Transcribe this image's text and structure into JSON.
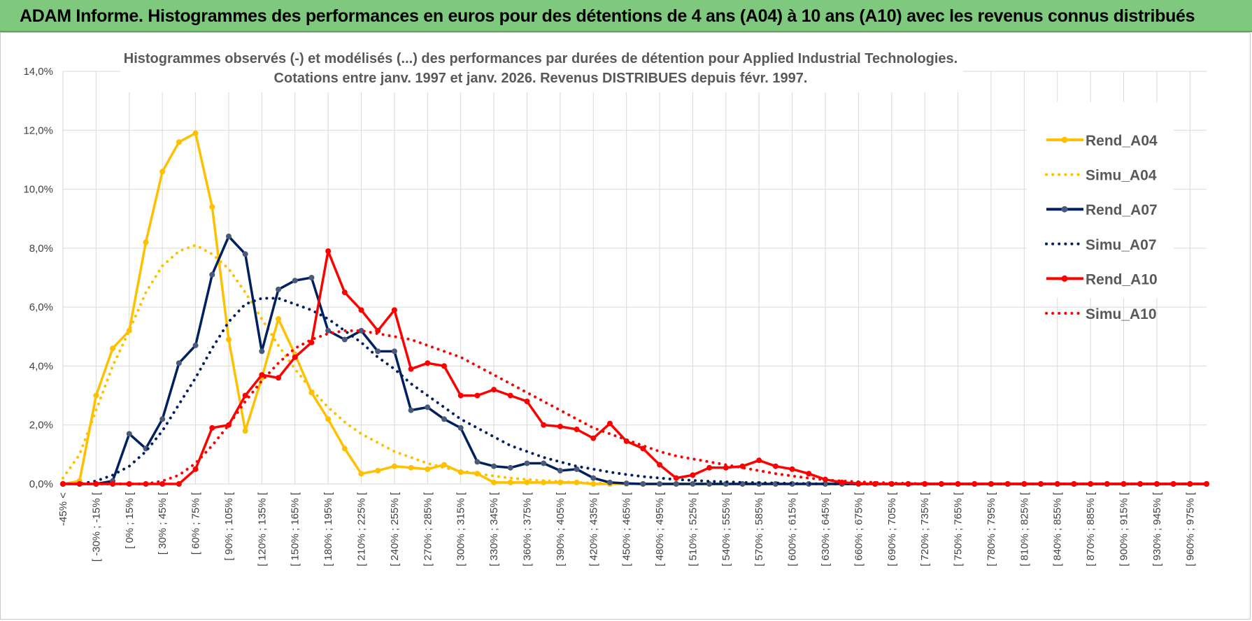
{
  "banner": {
    "title": "ADAM Informe. Histogrammes des performances en euros pour des détentions de 4 ans (A04) à 10 ans (A10) avec les revenus connus distribués"
  },
  "colors": {
    "a04": "#ffc000",
    "a07": "#002060",
    "a10": "#ff0000",
    "grid": "#d9d9d9",
    "banner": "#7fc97f"
  },
  "chart_data": {
    "type": "line",
    "title_line1": "Histogrammes observés (-) et modélisés (...) des performances par durées de détention pour Applied Industrial Technologies.",
    "title_line2": "Cotations entre janv. 1997 et janv. 2026. Revenus DISTRIBUES depuis févr. 1997.",
    "ylim": [
      0,
      14
    ],
    "y_ticks": [
      "0,0%",
      "2,0%",
      "4,0%",
      "6,0%",
      "8,0%",
      "10,0%",
      "12,0%",
      "14,0%"
    ],
    "x_labels": [
      "-45% <",
      "[ -30% ; -15% [",
      "[ 0% ; 15% [",
      "[ 30% ; 45% [",
      "[ 60% ; 75% [",
      "[ 90% ; 105% [",
      "[ 120% ; 135% [",
      "[ 150% ; 165% [",
      "[ 180% ; 195% [",
      "[ 210% ; 225% [",
      "[ 240% ; 255% [",
      "[ 270% ; 285% [",
      "[ 300% ; 315% [",
      "[ 330% ; 345% [",
      "[ 360% ; 375% [",
      "[ 390% ; 405% [",
      "[ 420% ; 435% [",
      "[ 450% ; 465% [",
      "[ 480% ; 495% [",
      "[ 510% ; 525% [",
      "[ 540% ; 555% [",
      "[ 570% ; 585% [",
      "[ 600% ; 615% [",
      "[ 630% ; 645% [",
      "[ 660% ; 675% [",
      "[ 690% ; 705% [",
      "[ 720% ; 735% [",
      "[ 750% ; 765% [",
      "[ 780% ; 795% [",
      "[ 810% ; 825% [",
      "[ 840% ; 855% [",
      "[ 870% ; 885% [",
      "[ 900% ; 915% [",
      "[ 930% ; 945% [",
      "[ 960% ; 975% ["
    ],
    "series": [
      {
        "name": "Rend_A04",
        "style": "solid",
        "color_key": "a04",
        "values": [
          0,
          0.1,
          3.0,
          4.6,
          5.2,
          8.2,
          10.6,
          11.6,
          11.9,
          9.4,
          4.9,
          1.8,
          3.6,
          5.6,
          4.4,
          3.1,
          2.2,
          1.2,
          0.35,
          0.45,
          0.6,
          0.55,
          0.5,
          0.65,
          0.4,
          0.35,
          0.05,
          0.05,
          0.05,
          0.05,
          0.05,
          0.05,
          0,
          0,
          0,
          0,
          0,
          0,
          0,
          0,
          0,
          0,
          0,
          0,
          0,
          0,
          0,
          0,
          0,
          0,
          0,
          0,
          0,
          0,
          0,
          0,
          0,
          0,
          0,
          0,
          0,
          0,
          0,
          0,
          0,
          0,
          0,
          0,
          0,
          0
        ]
      },
      {
        "name": "Simu_A04",
        "style": "dotted",
        "color_key": "a04",
        "values": [
          0.2,
          1.0,
          2.5,
          4.0,
          5.2,
          6.5,
          7.4,
          7.9,
          8.1,
          7.8,
          7.3,
          6.5,
          5.6,
          4.7,
          3.9,
          3.2,
          2.6,
          2.1,
          1.7,
          1.4,
          1.1,
          0.9,
          0.7,
          0.55,
          0.45,
          0.35,
          0.27,
          0.2,
          0.15,
          0.11,
          0.08,
          0.05,
          0.03,
          0.02,
          0.01,
          0,
          0,
          0,
          0,
          0,
          0,
          0,
          0,
          0,
          0,
          0,
          0,
          0,
          0,
          0,
          0,
          0,
          0,
          0,
          0,
          0,
          0,
          0,
          0,
          0,
          0,
          0,
          0,
          0,
          0,
          0,
          0,
          0,
          0,
          0
        ]
      },
      {
        "name": "Rend_A07",
        "style": "solid",
        "color_key": "a07",
        "values": [
          0,
          0,
          0,
          0.1,
          1.7,
          1.2,
          2.2,
          4.1,
          4.7,
          7.1,
          8.4,
          7.8,
          4.5,
          6.6,
          6.9,
          7.0,
          5.2,
          4.9,
          5.2,
          4.5,
          4.5,
          2.5,
          2.6,
          2.2,
          1.9,
          0.75,
          0.6,
          0.55,
          0.7,
          0.7,
          0.45,
          0.5,
          0.2,
          0.05,
          0.02,
          0,
          0,
          0,
          0,
          0,
          0,
          0,
          0,
          0,
          0,
          0,
          0,
          0,
          0,
          0,
          0,
          0,
          0,
          0,
          0,
          0,
          0,
          0,
          0,
          0,
          0,
          0,
          0,
          0,
          0,
          0,
          0,
          0,
          0,
          0
        ]
      },
      {
        "name": "Simu_A07",
        "style": "dotted",
        "color_key": "a07",
        "values": [
          0,
          0,
          0.1,
          0.3,
          0.6,
          1.1,
          1.8,
          2.7,
          3.6,
          4.6,
          5.5,
          6.1,
          6.3,
          6.3,
          6.1,
          5.9,
          5.6,
          5.2,
          4.8,
          4.3,
          3.9,
          3.4,
          3.0,
          2.6,
          2.2,
          1.9,
          1.6,
          1.3,
          1.1,
          0.9,
          0.75,
          0.6,
          0.5,
          0.4,
          0.32,
          0.25,
          0.2,
          0.15,
          0.12,
          0.09,
          0.07,
          0.05,
          0.04,
          0.03,
          0.02,
          0.01,
          0,
          0,
          0,
          0,
          0,
          0,
          0,
          0,
          0,
          0,
          0,
          0,
          0,
          0,
          0,
          0,
          0,
          0,
          0,
          0,
          0,
          0,
          0,
          0
        ]
      },
      {
        "name": "Rend_A10",
        "style": "solid",
        "color_key": "a10",
        "values": [
          0,
          0,
          0,
          0,
          0,
          0,
          0,
          0,
          0.5,
          1.9,
          2.0,
          3.0,
          3.7,
          3.6,
          4.3,
          4.8,
          7.9,
          6.5,
          5.9,
          5.2,
          5.9,
          3.9,
          4.1,
          4.0,
          3.0,
          3.0,
          3.2,
          3.0,
          2.8,
          2.0,
          1.95,
          1.85,
          1.55,
          2.05,
          1.45,
          1.2,
          0.65,
          0.2,
          0.3,
          0.55,
          0.55,
          0.6,
          0.8,
          0.6,
          0.5,
          0.35,
          0.15,
          0.05,
          0.02,
          0,
          0,
          0,
          0,
          0,
          0,
          0,
          0,
          0,
          0,
          0,
          0,
          0,
          0,
          0,
          0,
          0,
          0,
          0,
          0,
          0
        ]
      },
      {
        "name": "Simu_A10",
        "style": "dotted",
        "color_key": "a10",
        "values": [
          0,
          0,
          0,
          0,
          0,
          0,
          0.1,
          0.3,
          0.7,
          1.3,
          2.0,
          2.8,
          3.5,
          4.1,
          4.6,
          4.9,
          5.1,
          5.2,
          5.2,
          5.1,
          5.0,
          4.9,
          4.7,
          4.5,
          4.3,
          4.0,
          3.7,
          3.4,
          3.1,
          2.8,
          2.5,
          2.2,
          1.9,
          1.7,
          1.5,
          1.3,
          1.1,
          0.95,
          0.85,
          0.75,
          0.65,
          0.55,
          0.45,
          0.35,
          0.27,
          0.2,
          0.14,
          0.1,
          0.07,
          0.05,
          0.03,
          0.02,
          0.01,
          0,
          0,
          0,
          0,
          0,
          0,
          0,
          0,
          0,
          0,
          0,
          0,
          0,
          0,
          0,
          0,
          0
        ]
      }
    ]
  }
}
